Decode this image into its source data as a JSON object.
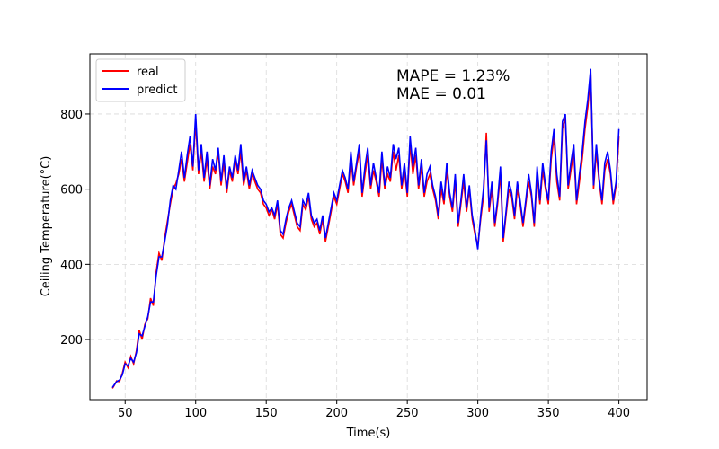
{
  "chart_data": {
    "type": "line",
    "xlabel": "Time(s)",
    "ylabel": "Ceiling Temperature(°C)",
    "xlim": [
      25,
      420
    ],
    "ylim": [
      40,
      960
    ],
    "xticks": [
      50,
      100,
      150,
      200,
      250,
      300,
      350,
      400
    ],
    "yticks": [
      200,
      400,
      600,
      800
    ],
    "grid": true,
    "legend": {
      "placement": "top-left"
    },
    "annotations": [
      "MAPE = 1.23%",
      "MAE = 0.01"
    ],
    "series": [
      {
        "name": "real",
        "color": "#ff0000",
        "x": [
          41,
          42,
          44,
          46,
          48,
          50,
          52,
          54,
          56,
          58,
          60,
          62,
          64,
          66,
          68,
          70,
          72,
          74,
          76,
          78,
          80,
          82,
          84,
          86,
          88,
          90,
          92,
          94,
          96,
          98,
          100,
          102,
          104,
          106,
          108,
          110,
          112,
          114,
          116,
          118,
          120,
          122,
          124,
          126,
          128,
          130,
          132,
          134,
          136,
          138,
          140,
          142,
          144,
          146,
          148,
          150,
          152,
          154,
          156,
          158,
          160,
          162,
          164,
          166,
          168,
          170,
          172,
          174,
          176,
          178,
          180,
          182,
          184,
          186,
          188,
          190,
          192,
          194,
          196,
          198,
          200,
          202,
          204,
          206,
          208,
          210,
          212,
          214,
          216,
          218,
          220,
          222,
          224,
          226,
          228,
          230,
          232,
          234,
          236,
          238,
          240,
          242,
          244,
          246,
          248,
          250,
          252,
          254,
          256,
          258,
          260,
          262,
          264,
          266,
          268,
          270,
          272,
          274,
          276,
          278,
          280,
          282,
          284,
          286,
          288,
          290,
          292,
          294,
          296,
          298,
          300,
          302,
          304,
          306,
          308,
          310,
          312,
          314,
          316,
          318,
          320,
          322,
          324,
          326,
          328,
          330,
          332,
          334,
          336,
          338,
          340,
          342,
          344,
          346,
          348,
          350,
          352,
          354,
          356,
          358,
          360,
          362,
          364,
          366,
          368,
          370,
          372,
          374,
          376,
          378,
          380,
          382,
          384,
          386,
          388,
          390,
          392,
          394,
          396,
          398,
          400
        ],
        "y": [
          70,
          76,
          90,
          88,
          110,
          140,
          125,
          155,
          135,
          170,
          225,
          200,
          240,
          255,
          310,
          290,
          380,
          430,
          410,
          470,
          515,
          560,
          600,
          615,
          640,
          680,
          620,
          670,
          720,
          650,
          780,
          640,
          700,
          620,
          680,
          600,
          660,
          640,
          700,
          610,
          670,
          590,
          650,
          620,
          680,
          640,
          700,
          610,
          650,
          600,
          640,
          620,
          600,
          590,
          560,
          550,
          530,
          545,
          520,
          560,
          480,
          470,
          510,
          540,
          560,
          530,
          500,
          490,
          560,
          545,
          580,
          520,
          500,
          510,
          480,
          520,
          460,
          500,
          540,
          580,
          560,
          600,
          640,
          620,
          590,
          680,
          610,
          660,
          700,
          580,
          640,
          690,
          600,
          650,
          620,
          580,
          680,
          600,
          640,
          620,
          700,
          650,
          690,
          600,
          650,
          580,
          720,
          640,
          690,
          600,
          660,
          580,
          620,
          640,
          600,
          570,
          520,
          600,
          560,
          650,
          580,
          540,
          620,
          500,
          560,
          620,
          540,
          600,
          520,
          480,
          450,
          520,
          580,
          750,
          540,
          600,
          500,
          560,
          640,
          460,
          530,
          600,
          580,
          520,
          600,
          560,
          500,
          560,
          620,
          580,
          500,
          640,
          560,
          650,
          600,
          560,
          680,
          740,
          620,
          570,
          760,
          790,
          600,
          650,
          700,
          560,
          620,
          680,
          760,
          820,
          910,
          600,
          700,
          620,
          560,
          650,
          680,
          640,
          560,
          610,
          740
        ]
      },
      {
        "name": "predict",
        "color": "#0000ff",
        "x": [
          41,
          42,
          44,
          46,
          48,
          50,
          52,
          54,
          56,
          58,
          60,
          62,
          64,
          66,
          68,
          70,
          72,
          74,
          76,
          78,
          80,
          82,
          84,
          86,
          88,
          90,
          92,
          94,
          96,
          98,
          100,
          102,
          104,
          106,
          108,
          110,
          112,
          114,
          116,
          118,
          120,
          122,
          124,
          126,
          128,
          130,
          132,
          134,
          136,
          138,
          140,
          142,
          144,
          146,
          148,
          150,
          152,
          154,
          156,
          158,
          160,
          162,
          164,
          166,
          168,
          170,
          172,
          174,
          176,
          178,
          180,
          182,
          184,
          186,
          188,
          190,
          192,
          194,
          196,
          198,
          200,
          202,
          204,
          206,
          208,
          210,
          212,
          214,
          216,
          218,
          220,
          222,
          224,
          226,
          228,
          230,
          232,
          234,
          236,
          238,
          240,
          242,
          244,
          246,
          248,
          250,
          252,
          254,
          256,
          258,
          260,
          262,
          264,
          266,
          268,
          270,
          272,
          274,
          276,
          278,
          280,
          282,
          284,
          286,
          288,
          290,
          292,
          294,
          296,
          298,
          300,
          302,
          304,
          306,
          308,
          310,
          312,
          314,
          316,
          318,
          320,
          322,
          324,
          326,
          328,
          330,
          332,
          334,
          336,
          338,
          340,
          342,
          344,
          346,
          348,
          350,
          352,
          354,
          356,
          358,
          360,
          362,
          364,
          366,
          368,
          370,
          372,
          374,
          376,
          378,
          380,
          382,
          384,
          386,
          388,
          390,
          392,
          394,
          396,
          398,
          400
        ],
        "y": [
          72,
          78,
          88,
          92,
          106,
          135,
          130,
          150,
          140,
          165,
          215,
          210,
          235,
          260,
          300,
          300,
          370,
          420,
          420,
          460,
          505,
          570,
          610,
          600,
          650,
          700,
          630,
          690,
          740,
          660,
          800,
          650,
          720,
          630,
          700,
          610,
          680,
          650,
          710,
          620,
          690,
          600,
          660,
          630,
          690,
          650,
          720,
          620,
          660,
          610,
          650,
          630,
          610,
          600,
          570,
          560,
          540,
          550,
          530,
          570,
          490,
          480,
          520,
          550,
          570,
          540,
          510,
          500,
          570,
          555,
          590,
          530,
          510,
          520,
          490,
          530,
          470,
          510,
          550,
          590,
          570,
          610,
          650,
          630,
          600,
          700,
          620,
          670,
          720,
          590,
          660,
          710,
          610,
          670,
          630,
          590,
          700,
          610,
          660,
          630,
          720,
          680,
          710,
          610,
          670,
          590,
          740,
          660,
          710,
          610,
          680,
          590,
          640,
          660,
          610,
          580,
          530,
          620,
          570,
          670,
          590,
          550,
          640,
          510,
          570,
          640,
          550,
          610,
          530,
          490,
          440,
          530,
          600,
          730,
          550,
          620,
          510,
          570,
          660,
          470,
          540,
          620,
          590,
          530,
          620,
          570,
          510,
          570,
          640,
          590,
          510,
          660,
          570,
          670,
          610,
          570,
          700,
          760,
          640,
          580,
          780,
          800,
          610,
          670,
          720,
          570,
          640,
          700,
          780,
          840,
          920,
          610,
          720,
          630,
          570,
          670,
          700,
          650,
          570,
          620,
          760
        ]
      }
    ]
  }
}
